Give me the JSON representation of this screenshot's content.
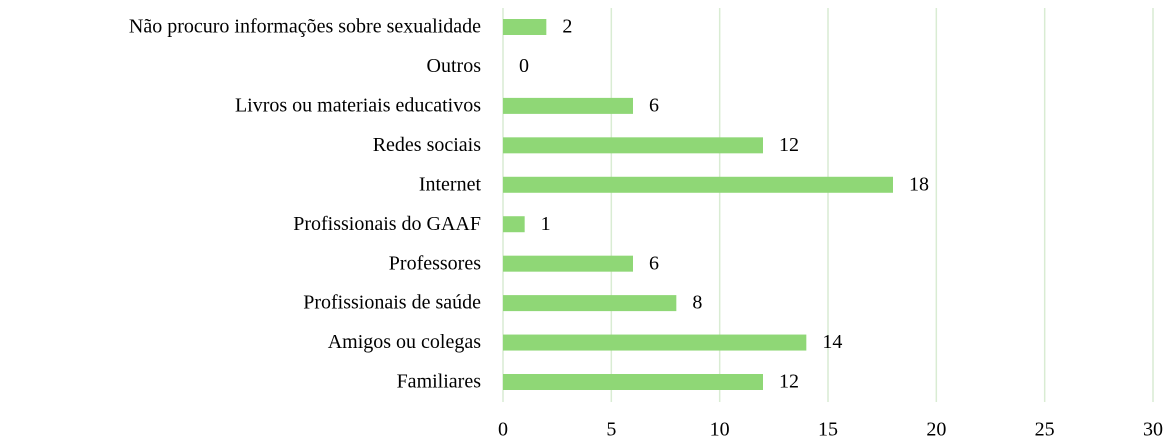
{
  "chart_data": {
    "type": "barh",
    "categories": [
      "Não procuro informações sobre sexualidade",
      "Outros",
      "Livros ou materiais educativos",
      "Redes sociais",
      "Internet",
      "Profissionais do GAAF",
      "Professores",
      "Profissionais de saúde",
      "Amigos ou colegas",
      "Familiares"
    ],
    "values": [
      2,
      0,
      6,
      12,
      18,
      1,
      6,
      8,
      14,
      12
    ],
    "color": "#8fd776",
    "grid_color": "#d9ecd3",
    "xlim": [
      0,
      30
    ],
    "xticks": [
      0,
      5,
      10,
      15,
      20,
      25,
      30
    ],
    "grid": true
  }
}
